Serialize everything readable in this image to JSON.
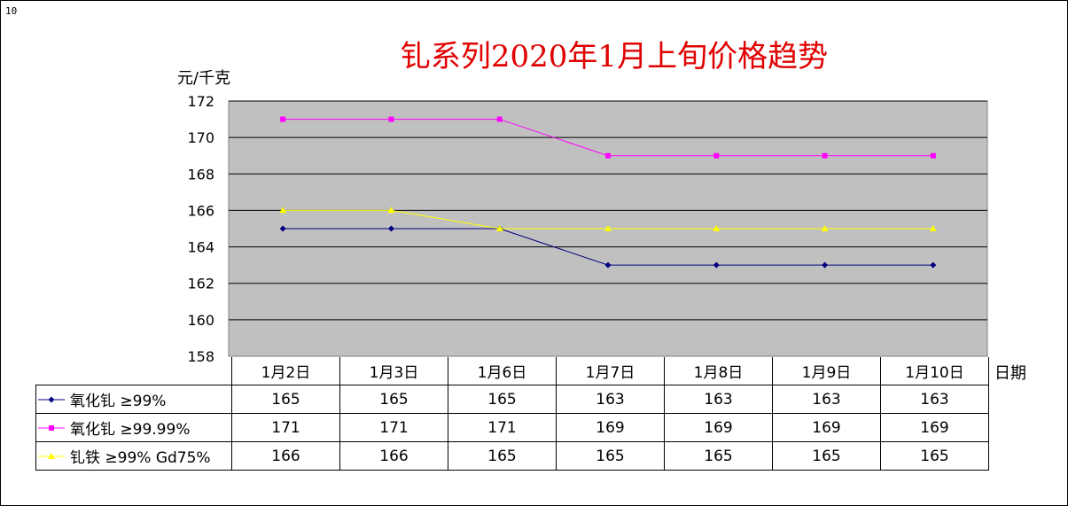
{
  "corner_label": "10",
  "chart_data": {
    "type": "line",
    "title": "钆系列2020年1月上旬价格趋势",
    "ylabel": "元/千克",
    "xlabel": "日期",
    "ylim": [
      158,
      172
    ],
    "yticks": [
      158,
      160,
      162,
      164,
      166,
      168,
      170,
      172
    ],
    "grid": true,
    "legend": "data-table",
    "categories": [
      "1月2日",
      "1月3日",
      "1月6日",
      "1月7日",
      "1月8日",
      "1月9日",
      "1月10日"
    ],
    "series": [
      {
        "name": "氧化钆 ≥99%",
        "values": [
          165,
          165,
          165,
          163,
          163,
          163,
          163
        ],
        "color": "#000080",
        "marker": "diamond"
      },
      {
        "name": "氧化钆 ≥99.99%",
        "values": [
          171,
          171,
          171,
          169,
          169,
          169,
          169
        ],
        "color": "#ff00ff",
        "marker": "square"
      },
      {
        "name": "钆铁 ≥99% Gd75%",
        "values": [
          166,
          166,
          165,
          165,
          165,
          165,
          165
        ],
        "color": "#ffff00",
        "marker": "triangle"
      }
    ],
    "plot_background": "#c0c0c0"
  }
}
